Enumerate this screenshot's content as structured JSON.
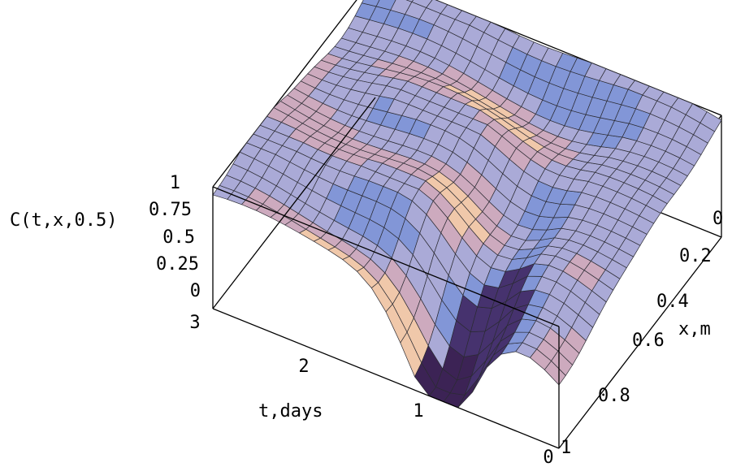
{
  "chart_data": {
    "type": "surface",
    "title": "",
    "zlabel": "C(t,x,0.5)",
    "tlabel": "t,days",
    "xlabel": "x,m",
    "z_ticks": [
      "0",
      "0.25",
      "0.5",
      "0.75",
      "1"
    ],
    "t_ticks": [
      "0",
      "1",
      "2",
      "3"
    ],
    "x_ticks": [
      "0",
      "0.2",
      "0.4",
      "0.6",
      "0.8",
      "1"
    ],
    "t_range": [
      0,
      3
    ],
    "x_range": [
      0,
      1
    ],
    "z_range": [
      0,
      1
    ],
    "grid_t": 24,
    "grid_x": 24,
    "description_values": {
      "t": [
        0,
        0.25,
        0.5,
        0.75,
        1,
        1.25,
        1.5,
        1.75,
        2,
        2.25,
        2.5,
        2.75,
        3
      ],
      "x": [
        0,
        0.1,
        0.2,
        0.3,
        0.4,
        0.5,
        0.6,
        0.7,
        0.8,
        0.9,
        1
      ],
      "C_at_x0": [
        1,
        1,
        1,
        0.98,
        0.95,
        0.9,
        0.9,
        0.92,
        0.95,
        0.97,
        0.98,
        0.98,
        0.98
      ],
      "C_at_x1": [
        0.55,
        0.4,
        0.2,
        0.05,
        0.0,
        0.05,
        0.3,
        0.6,
        0.85,
        0.95,
        0.98,
        0.98,
        0.98
      ]
    },
    "colors": {
      "box": "#000000",
      "background": "#ffffff"
    }
  }
}
